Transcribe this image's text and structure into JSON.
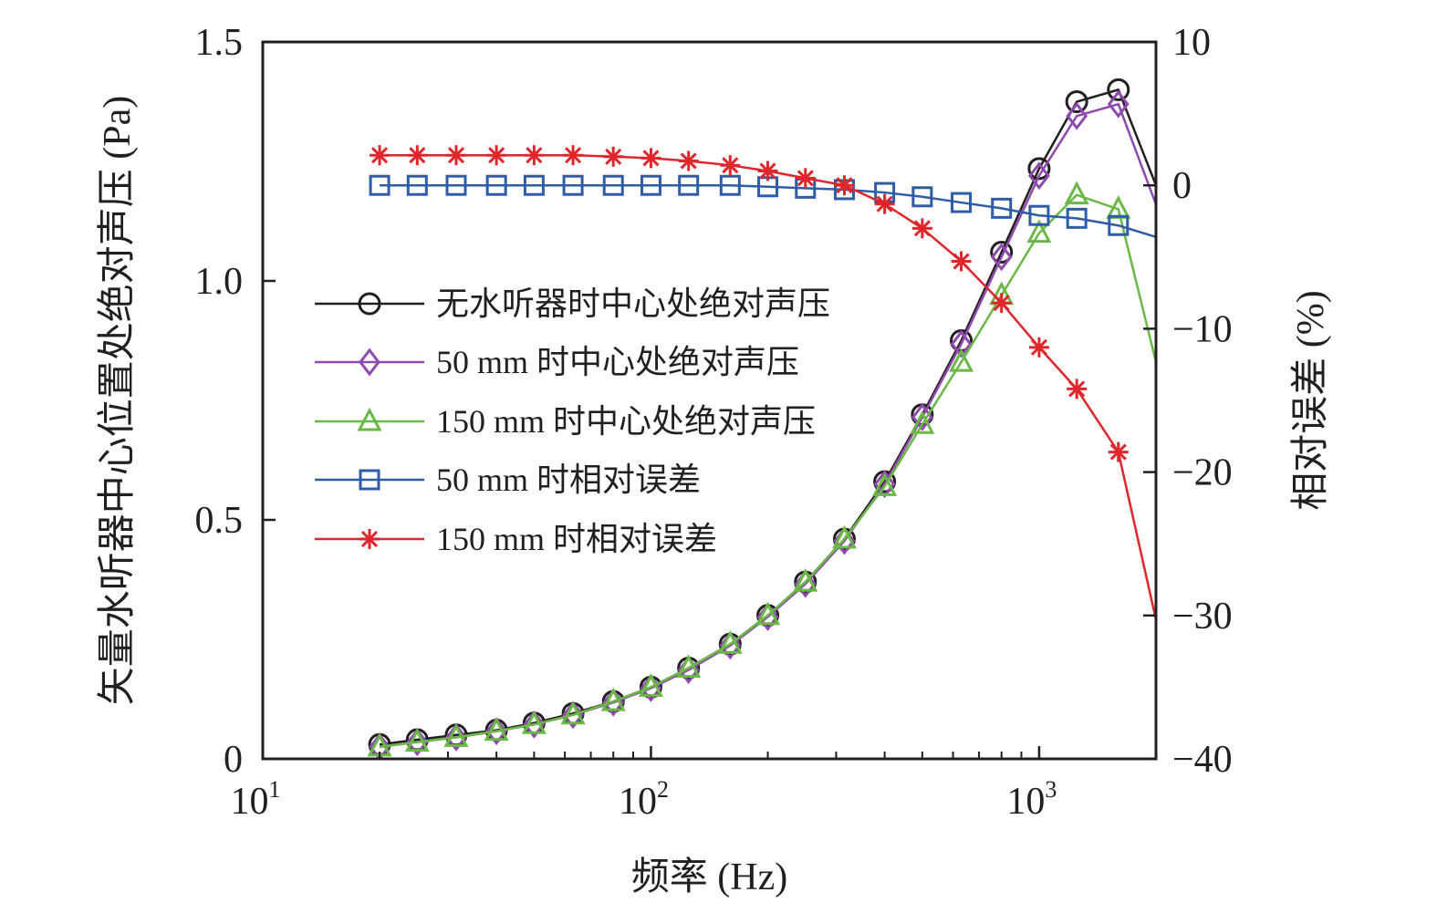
{
  "chart_data": {
    "type": "line",
    "x_scale": "log",
    "xlabel": "频率 (Hz)",
    "ylabel_left": "矢量水听器中心位置处绝对声压 (Pa)",
    "ylabel_right": "相对误差 (%)",
    "xlim": [
      10,
      2000
    ],
    "ylim_left": [
      0,
      1.5
    ],
    "ylim_right": [
      -40,
      10
    ],
    "x_ticks": [
      {
        "value": 10,
        "base": "10",
        "exp": "1"
      },
      {
        "value": 100,
        "base": "10",
        "exp": "2"
      },
      {
        "value": 1000,
        "base": "10",
        "exp": "3"
      }
    ],
    "y_ticks_left": [
      {
        "value": 0,
        "label": "0"
      },
      {
        "value": 0.5,
        "label": "0.5"
      },
      {
        "value": 1.0,
        "label": "1.0"
      },
      {
        "value": 1.5,
        "label": "1.5"
      }
    ],
    "y_ticks_right": [
      {
        "value": 10,
        "label": "10"
      },
      {
        "value": 0,
        "label": "0"
      },
      {
        "value": -10,
        "label": "−10"
      },
      {
        "value": -20,
        "label": "−20"
      },
      {
        "value": -30,
        "label": "−30"
      },
      {
        "value": -40,
        "label": "−40"
      }
    ],
    "legend_position": "left-center",
    "series": [
      {
        "name": "无水听器时中心处绝对声压",
        "axis": "left",
        "color": "#231f20",
        "marker": "circle",
        "x": [
          20,
          25,
          31.5,
          40,
          50,
          63,
          80,
          100,
          125,
          160,
          200,
          250,
          315,
          400,
          500,
          630,
          800,
          1000,
          1250,
          1600,
          2000
        ],
        "y": [
          0.03,
          0.04,
          0.05,
          0.06,
          0.075,
          0.095,
          0.12,
          0.15,
          0.19,
          0.24,
          0.3,
          0.37,
          0.46,
          0.58,
          0.72,
          0.875,
          1.06,
          1.235,
          1.375,
          1.4,
          1.2
        ]
      },
      {
        "name": "50 mm 时中心处绝对声压",
        "axis": "left",
        "color": "#8e4aac",
        "marker": "diamond",
        "x": [
          20,
          25,
          31.5,
          40,
          50,
          63,
          80,
          100,
          125,
          160,
          200,
          250,
          315,
          400,
          500,
          630,
          800,
          1000,
          1250,
          1600,
          2000
        ],
        "y": [
          0.025,
          0.035,
          0.045,
          0.058,
          0.072,
          0.092,
          0.118,
          0.148,
          0.186,
          0.237,
          0.297,
          0.366,
          0.456,
          0.575,
          0.715,
          0.868,
          1.05,
          1.22,
          1.345,
          1.37,
          1.16
        ]
      },
      {
        "name": "150 mm 时中心处绝对声压",
        "axis": "left",
        "color": "#6ab845",
        "marker": "triangle",
        "x": [
          20,
          25,
          31.5,
          40,
          50,
          63,
          80,
          100,
          125,
          160,
          200,
          250,
          315,
          400,
          500,
          630,
          800,
          1000,
          1250,
          1600,
          2000
        ],
        "y": [
          0.025,
          0.035,
          0.045,
          0.058,
          0.072,
          0.092,
          0.12,
          0.15,
          0.19,
          0.24,
          0.3,
          0.37,
          0.46,
          0.57,
          0.7,
          0.83,
          0.97,
          1.1,
          1.18,
          1.15,
          0.83
        ]
      },
      {
        "name": "50 mm 时相对误差",
        "axis": "right",
        "color": "#2f5ca8",
        "marker": "square",
        "x": [
          20,
          25,
          31.5,
          40,
          50,
          63,
          80,
          100,
          125,
          160,
          200,
          250,
          315,
          400,
          500,
          630,
          800,
          1000,
          1250,
          1600,
          2000
        ],
        "y": [
          0,
          0,
          0,
          0,
          0,
          0,
          0,
          0,
          0,
          0,
          -0.1,
          -0.2,
          -0.3,
          -0.5,
          -0.8,
          -1.2,
          -1.6,
          -2.1,
          -2.3,
          -2.8,
          -3.6
        ]
      },
      {
        "name": "150 mm 时相对误差",
        "axis": "right",
        "color": "#e0262b",
        "marker": "asterisk",
        "x": [
          20,
          25,
          31.5,
          40,
          50,
          63,
          80,
          100,
          125,
          160,
          200,
          250,
          315,
          400,
          500,
          630,
          800,
          1000,
          1250,
          1600,
          2000
        ],
        "y": [
          2.1,
          2.1,
          2.1,
          2.1,
          2.1,
          2.1,
          2.0,
          1.9,
          1.7,
          1.4,
          1.0,
          0.5,
          0,
          -1.3,
          -3.0,
          -5.3,
          -8.2,
          -11.3,
          -14.2,
          -18.6,
          -30.3
        ]
      }
    ]
  }
}
